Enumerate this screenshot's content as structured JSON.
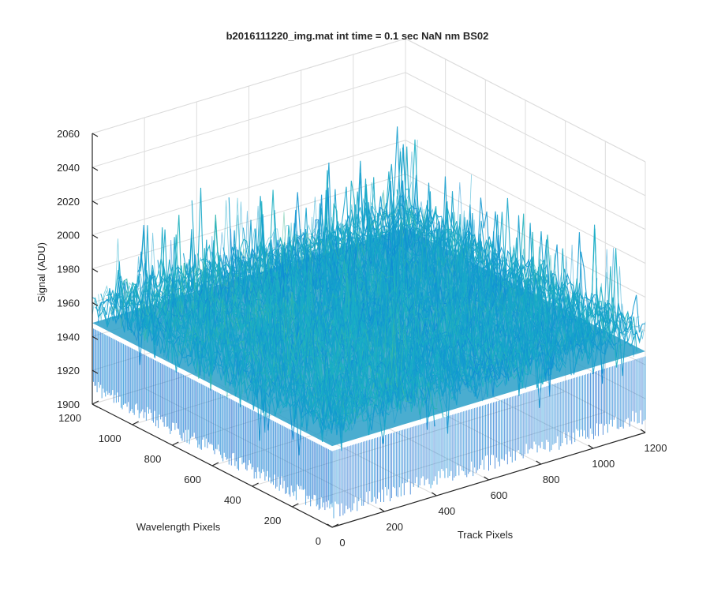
{
  "chart_data": {
    "type": "surface",
    "title": "b2016111220_img.mat int time = 0.1 sec  NaN nm BS02",
    "xlabel": "Track Pixels",
    "ylabel": "Wavelength Pixels",
    "zlabel": "Signal (ADU)",
    "xlim": [
      0,
      1200
    ],
    "ylim": [
      0,
      1200
    ],
    "zlim": [
      1900,
      2060
    ],
    "xticks": [
      "0",
      "200",
      "400",
      "600",
      "800",
      "1000",
      "1200"
    ],
    "yticks": [
      "0",
      "200",
      "400",
      "600",
      "800",
      "1000",
      "1200"
    ],
    "zticks": [
      "1900",
      "1920",
      "1940",
      "1960",
      "1980",
      "2000",
      "2020",
      "2040",
      "2060"
    ],
    "grid": true,
    "colormap": "parula",
    "colors": {
      "low": "#0072bd",
      "mid": "#3cb5b5",
      "high": "#e8c44a"
    },
    "surface_summary": {
      "baseline_mean": 1960,
      "noise_range": [
        1905,
        2050
      ],
      "description_values": {
        "typical_min": 1920,
        "typical_max": 2000
      }
    }
  }
}
